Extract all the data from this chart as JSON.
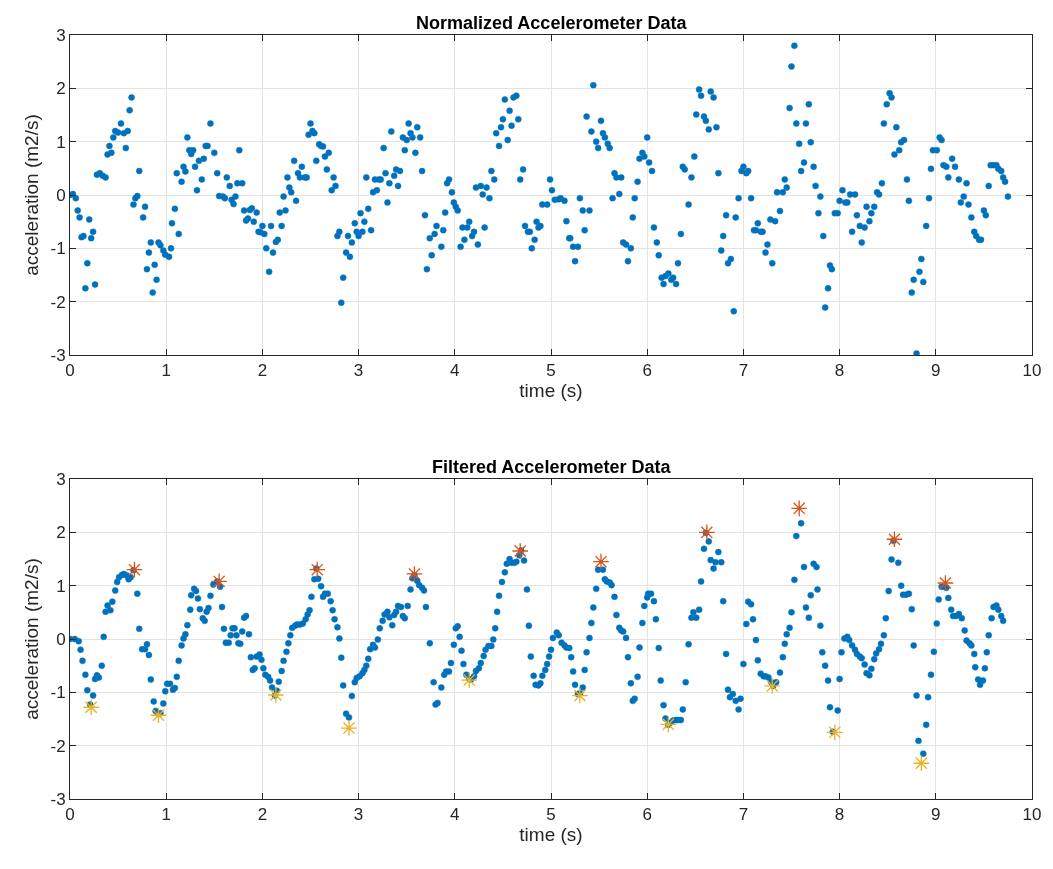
{
  "chart_data": [
    {
      "type": "scatter",
      "title": "Normalized Accelerometer Data",
      "xlabel": "time (s)",
      "ylabel": "acceleration (m2/s)",
      "xlim": [
        0,
        10
      ],
      "xticks": [
        0,
        1,
        2,
        3,
        4,
        5,
        6,
        7,
        8,
        9,
        10
      ],
      "ylim": [
        -3,
        3
      ],
      "yticks": [
        -3,
        -2,
        -1,
        0,
        1,
        2,
        3
      ],
      "grid": true,
      "marker": "circle",
      "series": [
        {
          "color": "#0072bd",
          "x": [
            0,
            0.03,
            0.06,
            0.08,
            0.1,
            0.12,
            0.14,
            0.16,
            0.18,
            0.2,
            0.22,
            0.24,
            0.26,
            0.28,
            0.31,
            0.34,
            0.37,
            0.39,
            0.41,
            0.43,
            0.45,
            0.47,
            0.5,
            0.53,
            0.56,
            0.58,
            0.6,
            0.62,
            0.64,
            0.66,
            0.68,
            0.7,
            0.72,
            0.76,
            0.78,
            0.8,
            0.82,
            0.84,
            0.86,
            0.88,
            0.9,
            0.92,
            0.94,
            0.97,
            0.99,
            1.03,
            1.05,
            1.06,
            1.09,
            1.11,
            1.13,
            1.16,
            1.18,
            1.2,
            1.22,
            1.24,
            1.26,
            1.28,
            1.3,
            1.32,
            1.34,
            1.37,
            1.39,
            1.41,
            1.43,
            1.46,
            1.5,
            1.53,
            1.55,
            1.59,
            1.61,
            1.63,
            1.66,
            1.68,
            1.7,
            1.72,
            1.74,
            1.76,
            1.79,
            1.81,
            1.83,
            1.85,
            1.87,
            1.89,
            1.91,
            1.94,
            1.96,
            1.98,
            2.0,
            2.02,
            2.04,
            2.07,
            2.09,
            2.11,
            2.14,
            2.16,
            2.18,
            2.2,
            2.22,
            2.24,
            2.26,
            2.28,
            2.3,
            2.33,
            2.35,
            2.37,
            2.39,
            2.41,
            2.44,
            2.46,
            2.48,
            2.5,
            2.52,
            2.54,
            2.56,
            2.59,
            2.61,
            2.63,
            2.65,
            2.67,
            2.69,
            2.72,
            2.74,
            2.76,
            2.78,
            2.8,
            2.82,
            2.84,
            2.87,
            2.89,
            2.91,
            2.93,
            2.96,
            2.98,
            3.0,
            3.02,
            3.04,
            3.06,
            3.08,
            3.1,
            3.13,
            3.15,
            3.17,
            3.19,
            3.21,
            3.23,
            3.26,
            3.28,
            3.3,
            3.32,
            3.34,
            3.37,
            3.39,
            3.41,
            3.43,
            3.46,
            3.48,
            3.5,
            3.52,
            3.54,
            3.56,
            3.59,
            3.61,
            3.64,
            3.66,
            3.69,
            3.71,
            3.74,
            3.76,
            3.79,
            3.81,
            3.86,
            3.88,
            3.9,
            3.92,
            3.94,
            3.97,
            3.99,
            4.01,
            4.03,
            4.06,
            4.08,
            4.1,
            4.13,
            4.15,
            4.18,
            4.2,
            4.22,
            4.24,
            4.27,
            4.29,
            4.31,
            4.33,
            4.36,
            4.38,
            4.41,
            4.43,
            4.46,
            4.48,
            4.5,
            4.52,
            4.55,
            4.57,
            4.59,
            4.61,
            4.64,
            4.66,
            4.68,
            4.71,
            4.73,
            4.76,
            4.78,
            4.8,
            4.83,
            4.85,
            4.87,
            4.89,
            4.91,
            4.96,
            4.99,
            5.01,
            5.04,
            5.08,
            5.1,
            5.14,
            5.16,
            5.19,
            5.2,
            5.23,
            5.25,
            5.28,
            5.3,
            5.33,
            5.35,
            5.37,
            5.4,
            5.42,
            5.44,
            5.47,
            5.49,
            5.52,
            5.54,
            5.56,
            5.59,
            5.61,
            5.64,
            5.66,
            5.68,
            5.71,
            5.73,
            5.75,
            5.78,
            5.8,
            5.83,
            5.85,
            5.87,
            5.9,
            5.92,
            5.95,
            5.97,
            6.0,
            6.02,
            6.05,
            6.07,
            6.1,
            6.12,
            6.15,
            6.17,
            6.19,
            6.22,
            6.25,
            6.27,
            6.3,
            6.32,
            6.35,
            6.37,
            6.39,
            6.43,
            6.46,
            6.49,
            6.51,
            6.54,
            6.56,
            6.59,
            6.61,
            6.64,
            6.66,
            6.69,
            6.72,
            6.74,
            6.77,
            6.79,
            6.82,
            6.84,
            6.87,
            6.9,
            6.92,
            6.95,
            6.98,
            7.0,
            7.03,
            7.05,
            7.08,
            7.11,
            7.13,
            7.15,
            7.18,
            7.2,
            7.23,
            7.25,
            7.28,
            7.3,
            7.33,
            7.35,
            7.38,
            7.41,
            7.43,
            7.45,
            7.48,
            7.5,
            7.53,
            7.55,
            7.58,
            7.6,
            7.63,
            7.65,
            7.68,
            7.7,
            7.73,
            7.75,
            7.78,
            7.8,
            7.83,
            7.85,
            7.88,
            7.9,
            7.92,
            7.95,
            7.98,
            8.0,
            8.03,
            8.06,
            8.08,
            8.11,
            8.13,
            8.16,
            8.18,
            8.21,
            8.23,
            8.26,
            8.28,
            8.31,
            8.33,
            8.36,
            8.39,
            8.41,
            8.44,
            8.46,
            8.49,
            8.52,
            8.54,
            8.57,
            8.59,
            8.62,
            8.64,
            8.67,
            8.7,
            8.72,
            8.75,
            8.77,
            8.8,
            8.83,
            8.85,
            8.87,
            8.9,
            8.93,
            8.95,
            8.97,
            9.01,
            9.04,
            9.06,
            9.08,
            9.11,
            9.13,
            9.17,
            9.2,
            9.24,
            9.26,
            9.29,
            9.32,
            9.34,
            9.37,
            9.4,
            9.42,
            9.45,
            9.47,
            9.5,
            9.52,
            9.55,
            9.57,
            9.6,
            9.63,
            9.65,
            9.68,
            9.7,
            9.72,
            9.75
          ],
          "values": [
            0,
            0.02,
            -0.06,
            -0.29,
            -0.42,
            -0.79,
            -0.77,
            -1.75,
            -1.28,
            -0.46,
            -0.81,
            -0.69,
            -1.68,
            0.38,
            0.41,
            0.36,
            0.33,
            0.76,
            0.92,
            0.79,
            1.08,
            1.2,
            1.17,
            1.34,
            1.16,
            0.88,
            1.2,
            1.59,
            1.83,
            -0.18,
            -0.06,
            -0.02,
            0.45,
            -0.42,
            -0.22,
            -1.39,
            -1.08,
            -0.89,
            -1.83,
            -1.31,
            -1.59,
            -0.89,
            -0.94,
            -1.04,
            -1.12,
            -1.16,
            -1.0,
            -0.53,
            -0.26,
            0.41,
            -0.73,
            0.25,
            0.53,
            0.44,
            1.08,
            0.84,
            0.77,
            0.84,
            0.53,
            0.09,
            0.64,
            0.29,
            0.68,
            0.92,
            0.92,
            1.34,
            0.79,
            0.41,
            -0.02,
            -0.03,
            -0.06,
            0.33,
            0.17,
            -0.09,
            -0.17,
            -0.03,
            0.22,
            0.84,
            0.22,
            -0.29,
            -0.48,
            -0.44,
            -0.28,
            -0.25,
            -0.5,
            -0.33,
            -0.69,
            -0.7,
            -0.58,
            -0.73,
            -1.0,
            -1.44,
            -0.58,
            -1.08,
            -0.88,
            -0.84,
            -0.33,
            -0.58,
            -0.03,
            -0.29,
            0.33,
            0.14,
            0.05,
            0.64,
            -0.11,
            0.41,
            0.33,
            0.53,
            0.33,
            0.33,
            1.13,
            1.34,
            1.2,
            1.16,
            0.64,
            0.95,
            0.92,
            0.91,
            0.72,
            0.48,
            0.79,
            0.09,
            0.33,
            0.17,
            -0.77,
            -0.69,
            -2.02,
            -1.55,
            -1.08,
            -0.77,
            -1.16,
            -0.89,
            -0.53,
            -0.69,
            -0.77,
            -0.34,
            -0.69,
            -0.5,
            0.33,
            -0.26,
            -0.66,
            0.05,
            0.29,
            0.09,
            0.29,
            0.29,
            0.88,
            0.41,
            -0.14,
            0.22,
            1.19,
            0.36,
            0.48,
            0.17,
            0.45,
            1.08,
            0.84,
            1.03,
            1.34,
            1.16,
            1.08,
            0.79,
            1.27,
            1.08,
            0.45,
            -0.38,
            -1.39,
            -0.81,
            -1.13,
            -0.73,
            -0.58,
            -0.97,
            -0.66,
            -0.33,
            0.22,
            0.29,
            0.05,
            -0.14,
            -0.22,
            -0.29,
            -0.97,
            -0.61,
            -0.84,
            -0.61,
            -0.5,
            -0.77,
            -0.69,
            0.14,
            -0.93,
            0.17,
            0.01,
            -0.61,
            0.14,
            -0.06,
            0.45,
            0.29,
            1.16,
            0.92,
            1.27,
            1.42,
            1.79,
            1.03,
            1.58,
            1.3,
            1.83,
            1.86,
            1.42,
            0.29,
            0.48,
            -0.58,
            -0.69,
            -0.69,
            -1.0,
            -0.84,
            -0.5,
            -0.61,
            -0.58,
            -0.18,
            -0.18,
            0.29,
            0.09,
            -0.09,
            -0.08,
            -0.06,
            -0.11,
            -0.49,
            -0.81,
            -0.81,
            -0.97,
            -1.24,
            -0.97,
            -0.06,
            -0.29,
            -0.66,
            1.47,
            -0.29,
            1.19,
            2.06,
            1.0,
            0.88,
            1.39,
            1.16,
            1.08,
            0.96,
            0.88,
            -0.06,
            0.41,
            0.33,
            0.02,
            0.33,
            -0.89,
            -0.93,
            -1.24,
            -1.0,
            -0.42,
            -0.06,
            0.25,
            0.68,
            0.79,
            0.72,
            1.08,
            0.61,
            0.45,
            -0.61,
            -0.89,
            -1.13,
            -1.55,
            -1.67,
            -1.52,
            -1.47,
            -1.59,
            -1.55,
            -1.67,
            -1.28,
            -0.73,
            0.53,
            0.48,
            -0.18,
            0.33,
            0.72,
            1.51,
            1.98,
            1.86,
            1.47,
            1.39,
            1.23,
            1.94,
            1.83,
            1.27,
            0.41,
            -1.04,
            -0.77,
            -0.38,
            -1.28,
            -1.2,
            -2.18,
            -0.42,
            -0.06,
            0.45,
            0.53,
            0.41,
            0.45,
            -0.06,
            -0.66,
            -0.66,
            -0.53,
            -0.69,
            -0.69,
            -1.08,
            -0.93,
            -0.46,
            -1.28,
            -0.49,
            0.05,
            -0.3,
            0.05,
            0.29,
            0.14,
            1.63,
            2.41,
            2.8,
            1.34,
            0.96,
            0.45,
            0.61,
            1.34,
            1.7,
            0.99,
            0.53,
            0.17,
            -0.34,
            -0.03,
            -0.77,
            -2.11,
            -1.75,
            -1.32,
            -1.39,
            -0.34,
            -0.34,
            -0.11,
            0.09,
            -0.14,
            -0.14,
            0.01,
            -0.69,
            0.01,
            -0.38,
            -0.58,
            -0.89,
            -0.61,
            -0.22,
            -0.49,
            -0.34,
            -0.22,
            0.05,
            0.01,
            0.22,
            1.34,
            1.7,
            1.91,
            1.83,
            0.76,
            1.27,
            0.84,
            0.99,
            1.03,
            0.29,
            -0.11,
            -1.83,
            -1.59,
            -2.97,
            -1.44,
            -1.2,
            -1.63,
            -0.58,
            -0.06,
            0.49,
            0.84,
            0.84,
            1.08,
            1.03,
            0.56,
            0.53,
            0.33,
            0.68,
            0.53,
            0.29,
            -0.14,
            -0.03,
            0.22,
            -0.18,
            -0.42,
            -0.69,
            -0.77,
            -0.84,
            -0.84,
            -0.29,
            -0.38,
            0.17,
            0.56,
            0.56,
            0.56,
            0.49,
            0.45,
            0.33,
            0.25,
            -0.03
          ]
        }
      ]
    },
    {
      "type": "scatter",
      "title": "Filtered Accelerometer Data",
      "xlabel": "time (s)",
      "ylabel": "acceleration (m2/s)",
      "xlim": [
        0,
        10
      ],
      "xticks": [
        0,
        1,
        2,
        3,
        4,
        5,
        6,
        7,
        8,
        9,
        10
      ],
      "ylim": [
        -3,
        3
      ],
      "yticks": [
        -3,
        -2,
        -1,
        0,
        1,
        2,
        3
      ],
      "grid": true,
      "marker": "circle",
      "series": [
        {
          "color": "#0072bd",
          "x": [
            0,
            0.05,
            0.09,
            0.11,
            0.13,
            0.16,
            0.18,
            0.21,
            0.24,
            0.26,
            0.28,
            0.3,
            0.33,
            0.35,
            0.37,
            0.39,
            0.42,
            0.44,
            0.47,
            0.49,
            0.51,
            0.54,
            0.56,
            0.59,
            0.61,
            0.63,
            0.66,
            0.7,
            0.72,
            0.75,
            0.78,
            0.8,
            0.82,
            0.84,
            0.87,
            0.89,
            0.92,
            0.94,
            0.97,
            0.99,
            1.01,
            1.04,
            1.07,
            1.09,
            1.11,
            1.13,
            1.16,
            1.18,
            1.2,
            1.22,
            1.25,
            1.26,
            1.29,
            1.31,
            1.33,
            1.35,
            1.38,
            1.4,
            1.42,
            1.44,
            1.46,
            1.49,
            1.53,
            1.56,
            1.58,
            1.6,
            1.62,
            1.65,
            1.67,
            1.69,
            1.71,
            1.73,
            1.75,
            1.77,
            1.79,
            1.81,
            1.83,
            1.86,
            1.88,
            1.9,
            1.92,
            1.94,
            1.97,
            1.99,
            2.01,
            2.03,
            2.06,
            2.08,
            2.1,
            2.13,
            2.15,
            2.17,
            2.2,
            2.22,
            2.25,
            2.27,
            2.29,
            2.31,
            2.34,
            2.36,
            2.39,
            2.42,
            2.45,
            2.47,
            2.49,
            2.51,
            2.54,
            2.56,
            2.58,
            2.61,
            2.63,
            2.65,
            2.68,
            2.71,
            2.73,
            2.75,
            2.78,
            2.8,
            2.82,
            2.84,
            2.87,
            2.9,
            2.93,
            2.96,
            2.98,
            3.01,
            3.04,
            3.06,
            3.08,
            3.1,
            3.12,
            3.15,
            3.17,
            3.2,
            3.22,
            3.25,
            3.27,
            3.3,
            3.32,
            3.35,
            3.37,
            3.39,
            3.41,
            3.44,
            3.46,
            3.48,
            3.51,
            3.54,
            3.56,
            3.58,
            3.61,
            3.63,
            3.66,
            3.68,
            3.7,
            3.74,
            3.78,
            3.8,
            3.82,
            3.86,
            3.89,
            3.91,
            3.94,
            3.96,
            3.99,
            4.01,
            4.03,
            4.05,
            4.07,
            4.09,
            4.12,
            4.15,
            4.17,
            4.2,
            4.22,
            4.25,
            4.27,
            4.3,
            4.32,
            4.35,
            4.38,
            4.4,
            4.42,
            4.44,
            4.46,
            4.49,
            4.52,
            4.54,
            4.57,
            4.59,
            4.62,
            4.64,
            4.67,
            4.69,
            4.72,
            4.75,
            4.77,
            4.79,
            4.82,
            4.84,
            4.87,
            4.89,
            4.91,
            4.94,
            4.96,
            4.98,
            5.0,
            5.02,
            5.06,
            5.08,
            5.11,
            5.14,
            5.16,
            5.19,
            5.21,
            5.23,
            5.25,
            5.28,
            5.3,
            5.33,
            5.35,
            5.37,
            5.4,
            5.42,
            5.44,
            5.47,
            5.49,
            5.54,
            5.56,
            5.58,
            5.61,
            5.63,
            5.66,
            5.68,
            5.71,
            5.73,
            5.75,
            5.78,
            5.8,
            5.83,
            5.85,
            5.87,
            5.9,
            5.92,
            5.95,
            5.97,
            6.0,
            6.01,
            6.04,
            6.07,
            6.09,
            6.12,
            6.14,
            6.17,
            6.19,
            6.22,
            6.24,
            6.27,
            6.3,
            6.32,
            6.35,
            6.37,
            6.4,
            6.43,
            6.46,
            6.48,
            6.51,
            6.54,
            6.56,
            6.59,
            6.61,
            6.64,
            6.66,
            6.69,
            6.71,
            6.74,
            6.77,
            6.79,
            6.82,
            6.84,
            6.86,
            6.89,
            6.92,
            6.95,
            6.97,
            7.0,
            7.03,
            7.05,
            7.08,
            7.1,
            7.13,
            7.15,
            7.18,
            7.21,
            7.23,
            7.26,
            7.29,
            7.31,
            7.34,
            7.38,
            7.41,
            7.43,
            7.45,
            7.48,
            7.5,
            7.53,
            7.55,
            7.6,
            7.63,
            7.65,
            7.68,
            7.7,
            7.73,
            7.76,
            7.77,
            7.8,
            7.82,
            7.85,
            7.88,
            7.9,
            7.93,
            7.98,
            8.0,
            8.02,
            8.05,
            8.08,
            8.1,
            8.13,
            8.16,
            8.18,
            8.21,
            8.23,
            8.26,
            8.28,
            8.31,
            8.33,
            8.36,
            8.38,
            8.41,
            8.43,
            8.46,
            8.48,
            8.51,
            8.54,
            8.56,
            8.61,
            8.64,
            8.66,
            8.69,
            8.72,
            8.75,
            8.77,
            8.8,
            8.82,
            8.87,
            8.9,
            8.92,
            8.95,
            8.98,
            9.01,
            9.03,
            9.06,
            9.09,
            9.11,
            9.13,
            9.16,
            9.18,
            9.21,
            9.24,
            9.27,
            9.3,
            9.32,
            9.35,
            9.37,
            9.4,
            9.41,
            9.44,
            9.46,
            9.49,
            9.51,
            9.53,
            9.55,
            9.58,
            9.6,
            9.63,
            9.65,
            9.68,
            9.7
          ],
          "values": [
            0,
            0,
            -0.04,
            -0.2,
            -0.41,
            -0.67,
            -0.96,
            -1.23,
            -1.06,
            -0.75,
            -0.68,
            -0.72,
            -0.5,
            0.04,
            0.51,
            0.63,
            0.54,
            0.7,
            0.91,
            1.07,
            1.16,
            1.2,
            1.22,
            1.19,
            1.12,
            1.16,
            1.29,
            0.85,
            0.19,
            -0.19,
            -0.19,
            -0.1,
            -0.3,
            -0.76,
            -1.17,
            -1.35,
            -1.4,
            -1.39,
            -1.21,
            -0.98,
            -0.84,
            -0.84,
            -0.95,
            -0.92,
            -0.71,
            -0.41,
            -0.12,
            0.01,
            0.09,
            0.26,
            0.55,
            0.82,
            0.94,
            0.9,
            0.76,
            0.56,
            0.39,
            0.34,
            0.51,
            0.58,
            0.81,
            1.02,
            1.08,
            0.98,
            0.6,
            0.19,
            -0.07,
            -0.07,
            0.07,
            0.2,
            0.2,
            0.07,
            -0.08,
            -0.09,
            0.14,
            0.4,
            0.43,
            0.09,
            -0.34,
            -0.58,
            -0.55,
            -0.33,
            -0.29,
            -0.39,
            -0.55,
            -0.67,
            -0.71,
            -0.78,
            -0.91,
            -1.06,
            -0.97,
            -0.8,
            -0.6,
            -0.41,
            -0.24,
            -0.08,
            0.07,
            0.21,
            0.25,
            0.27,
            0.27,
            0.29,
            0.37,
            0.46,
            0.54,
            0.79,
            1.12,
            1.32,
            1.13,
            0.99,
            0.79,
            0.85,
            0.85,
            0.71,
            0.54,
            0.37,
            0.22,
            0.01,
            -0.35,
            -0.87,
            -1.4,
            -1.47,
            -1.07,
            -0.81,
            -0.73,
            -0.7,
            -0.64,
            -0.58,
            -0.5,
            -0.37,
            -0.19,
            -0.11,
            -0.16,
            -0.01,
            0.2,
            0.34,
            0.46,
            0.51,
            0.41,
            0.26,
            0.45,
            0.51,
            0.62,
            0.6,
            0.43,
            0.39,
            0.62,
            0.93,
            1.14,
            1.2,
            1.09,
            1.01,
            0.96,
            0.91,
            0.6,
            -0.08,
            -0.81,
            -1.23,
            -1.2,
            -0.91,
            -0.67,
            -0.61,
            -0.61,
            -0.45,
            -0.11,
            0.2,
            0.24,
            0.04,
            -0.22,
            -0.47,
            -0.67,
            -0.75,
            -0.76,
            -0.7,
            -0.6,
            -0.55,
            -0.45,
            -0.32,
            -0.2,
            -0.13,
            -0.13,
            -0.01,
            0.2,
            0.51,
            0.81,
            1.07,
            1.25,
            1.41,
            1.5,
            1.43,
            1.43,
            1.45,
            1.57,
            1.66,
            1.47,
            0.93,
            0.25,
            -0.33,
            -0.69,
            -0.86,
            -0.87,
            -0.83,
            -0.69,
            -0.58,
            -0.47,
            -0.33,
            -0.2,
            0.02,
            0.12,
            0.07,
            -0.07,
            -0.12,
            -0.16,
            -0.17,
            -0.34,
            -0.61,
            -0.86,
            -1.03,
            -1.02,
            -0.91,
            -0.58,
            -0.25,
            0.02,
            0.3,
            0.59,
            0.94,
            1.3,
            1.3,
            1.12,
            1.08,
            1.06,
            1.01,
            0.79,
            0.45,
            0.21,
            0.16,
            0.14,
            0.02,
            -0.34,
            -0.83,
            -1.16,
            -1.12,
            -0.71,
            -0.16,
            0.3,
            0.62,
            0.78,
            0.85,
            0.85,
            0.71,
            0.37,
            -0.17,
            -0.78,
            -1.24,
            -1.49,
            -1.61,
            -1.57,
            -1.53,
            -1.52,
            -1.52,
            -1.52,
            -1.32,
            -0.81,
            -0.1,
            0.4,
            0.5,
            0.4,
            0.55,
            1.08,
            1.69,
            1.99,
            1.83,
            1.48,
            1.32,
            1.44,
            1.63,
            1.44,
            0.71,
            -0.28,
            -0.95,
            -1.09,
            -1.03,
            -1.16,
            -1.32,
            -1.12,
            -0.47,
            0.28,
            0.7,
            0.65,
            0.37,
            -0.02,
            -0.4,
            -0.65,
            -0.7,
            -0.7,
            -0.72,
            -0.81,
            -0.88,
            -0.81,
            -0.63,
            -0.34,
            -0.09,
            0.09,
            0.21,
            0.5,
            1.11,
            1.93,
            2.17,
            1.35,
            0.59,
            0.4,
            0.82,
            1.41,
            1.35,
            0.93,
            0.25,
            -0.25,
            -0.5,
            -0.78,
            -1.28,
            -1.74,
            -1.34,
            -0.75,
            -0.25,
            0.01,
            0.04,
            -0.02,
            -0.12,
            -0.2,
            -0.28,
            -0.33,
            -0.36,
            -0.48,
            -0.64,
            -0.68,
            -0.56,
            -0.38,
            -0.27,
            -0.19,
            -0.09,
            0.07,
            0.39,
            0.9,
            1.49,
            1.84,
            1.43,
            1.0,
            0.83,
            0.83,
            0.85,
            0.56,
            -0.12,
            -1.06,
            -1.91,
            -2.15,
            -1.61,
            -1.09,
            -0.67,
            -0.24,
            0.29,
            0.74,
            0.98,
            0.98,
            0.96,
            0.77,
            0.55,
            0.43,
            0.43,
            0.47,
            0.39,
            0.16,
            -0.03,
            -0.08,
            -0.12,
            -0.28,
            -0.53,
            -0.76,
            -0.86,
            -0.78,
            -0.55,
            -0.25,
            0.07,
            0.39,
            0.6,
            0.63,
            0.55,
            0.43,
            0.34
          ]
        },
        {
          "color": "#d95319",
          "marker": "cross",
          "x": [
            0.67,
            1.55,
            2.57,
            3.58,
            4.68,
            5.52,
            6.62,
            7.58,
            8.57,
            9.1
          ],
          "values": [
            1.3,
            1.08,
            1.3,
            1.22,
            1.65,
            1.45,
            2.0,
            2.45,
            1.87,
            1.05
          ]
        },
        {
          "color": "#edb120",
          "marker": "cross",
          "x": [
            0.22,
            0.92,
            2.14,
            2.9,
            4.15,
            5.3,
            6.22,
            7.3,
            7.95,
            8.85
          ],
          "values": [
            -1.28,
            -1.43,
            -1.05,
            -1.67,
            -0.77,
            -1.06,
            -1.6,
            -0.88,
            -1.75,
            -2.33
          ]
        }
      ]
    }
  ]
}
